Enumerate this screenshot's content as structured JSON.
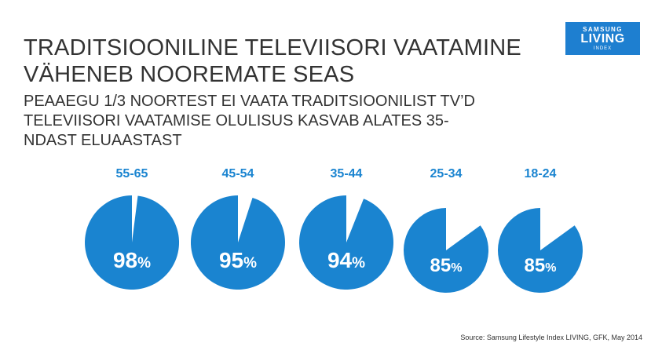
{
  "title_lines": [
    "TRADITSIOONILINE TELEVIISORI VAATAMINE",
    "VÄHENEB NOOREMATE SEAS"
  ],
  "subtitle_lines": [
    "PEAAEGU 1/3 NOORTEST EI VAATA TRADITSIOONILIST TV’D",
    "TELEVIISORI VAATAMISE OLULISUS KASVAB ALATES 35-",
    "NDAST ELUAASTAST"
  ],
  "logo": {
    "line1": "SAMSUNG",
    "line2": "LIVING",
    "line3": "INDEX"
  },
  "source": "Source: Samsung Lifestyle Index LIVING, GFK, May 2014",
  "colors": {
    "pie": "#1a84d0",
    "logo": "#1e7fd0"
  },
  "chart_data": {
    "type": "pie",
    "categories": [
      "55-65",
      "45-54",
      "35-44",
      "25-34",
      "18-24"
    ],
    "values": [
      98,
      95,
      94,
      85,
      85
    ],
    "value_labels": [
      "98%",
      "95%",
      "94%",
      "85%",
      "85%"
    ]
  }
}
